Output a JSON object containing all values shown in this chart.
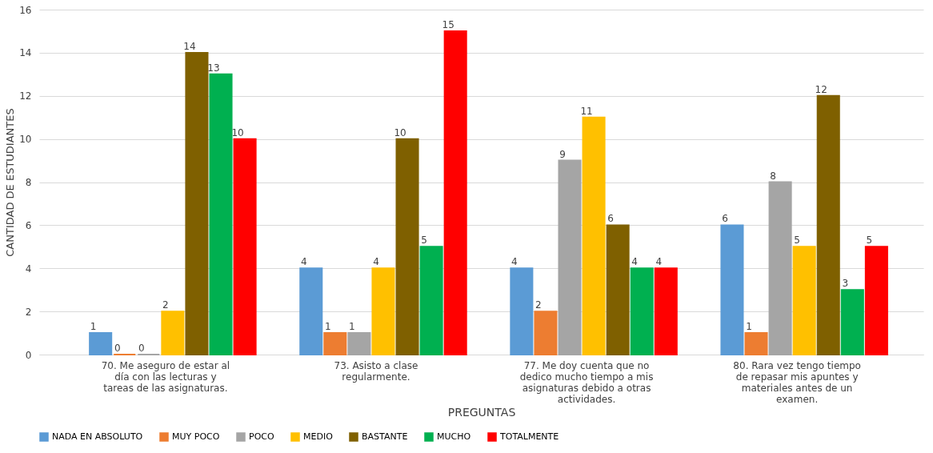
{
  "chart_data": {
    "type": "bar",
    "xlabel": "PREGUNTAS",
    "ylabel": "CANTIDAD DE ESTUDIANTES",
    "categories": [
      "70. Me aseguro de estar al día con las lecturas y tareas de las asignaturas.",
      "73. Asisto a clase regularmente.",
      "77. Me doy cuenta que no dedico mucho tiempo a mis asignaturas debido a otras actividades.",
      "80. Rara vez tengo tiempo de repasar mis apuntes y materiales antes de un examen."
    ],
    "series": [
      {
        "name": "NADA EN ABSOLUTO",
        "color": "#5b9bd5",
        "values": [
          1,
          4,
          4,
          6
        ]
      },
      {
        "name": "MUY POCO",
        "color": "#ed7d31",
        "values": [
          0,
          1,
          2,
          1
        ]
      },
      {
        "name": "POCO",
        "color": "#a5a5a5",
        "values": [
          0,
          1,
          9,
          8
        ]
      },
      {
        "name": "MEDIO",
        "color": "#ffc000",
        "values": [
          2,
          4,
          11,
          5
        ]
      },
      {
        "name": "BASTANTE",
        "color": "#7f6000",
        "values": [
          14,
          10,
          6,
          12
        ]
      },
      {
        "name": "MUCHO",
        "color": "#00b050",
        "values": [
          13,
          5,
          4,
          3
        ]
      },
      {
        "name": "TOTALMENTE",
        "color": "#ff0000",
        "values": [
          10,
          15,
          4,
          5
        ]
      }
    ],
    "ylim": [
      0,
      16
    ],
    "yticks": [
      0,
      2,
      4,
      6,
      8,
      10,
      12,
      14,
      16
    ],
    "grid": "y",
    "legend": "bottom",
    "data_labels": true
  }
}
